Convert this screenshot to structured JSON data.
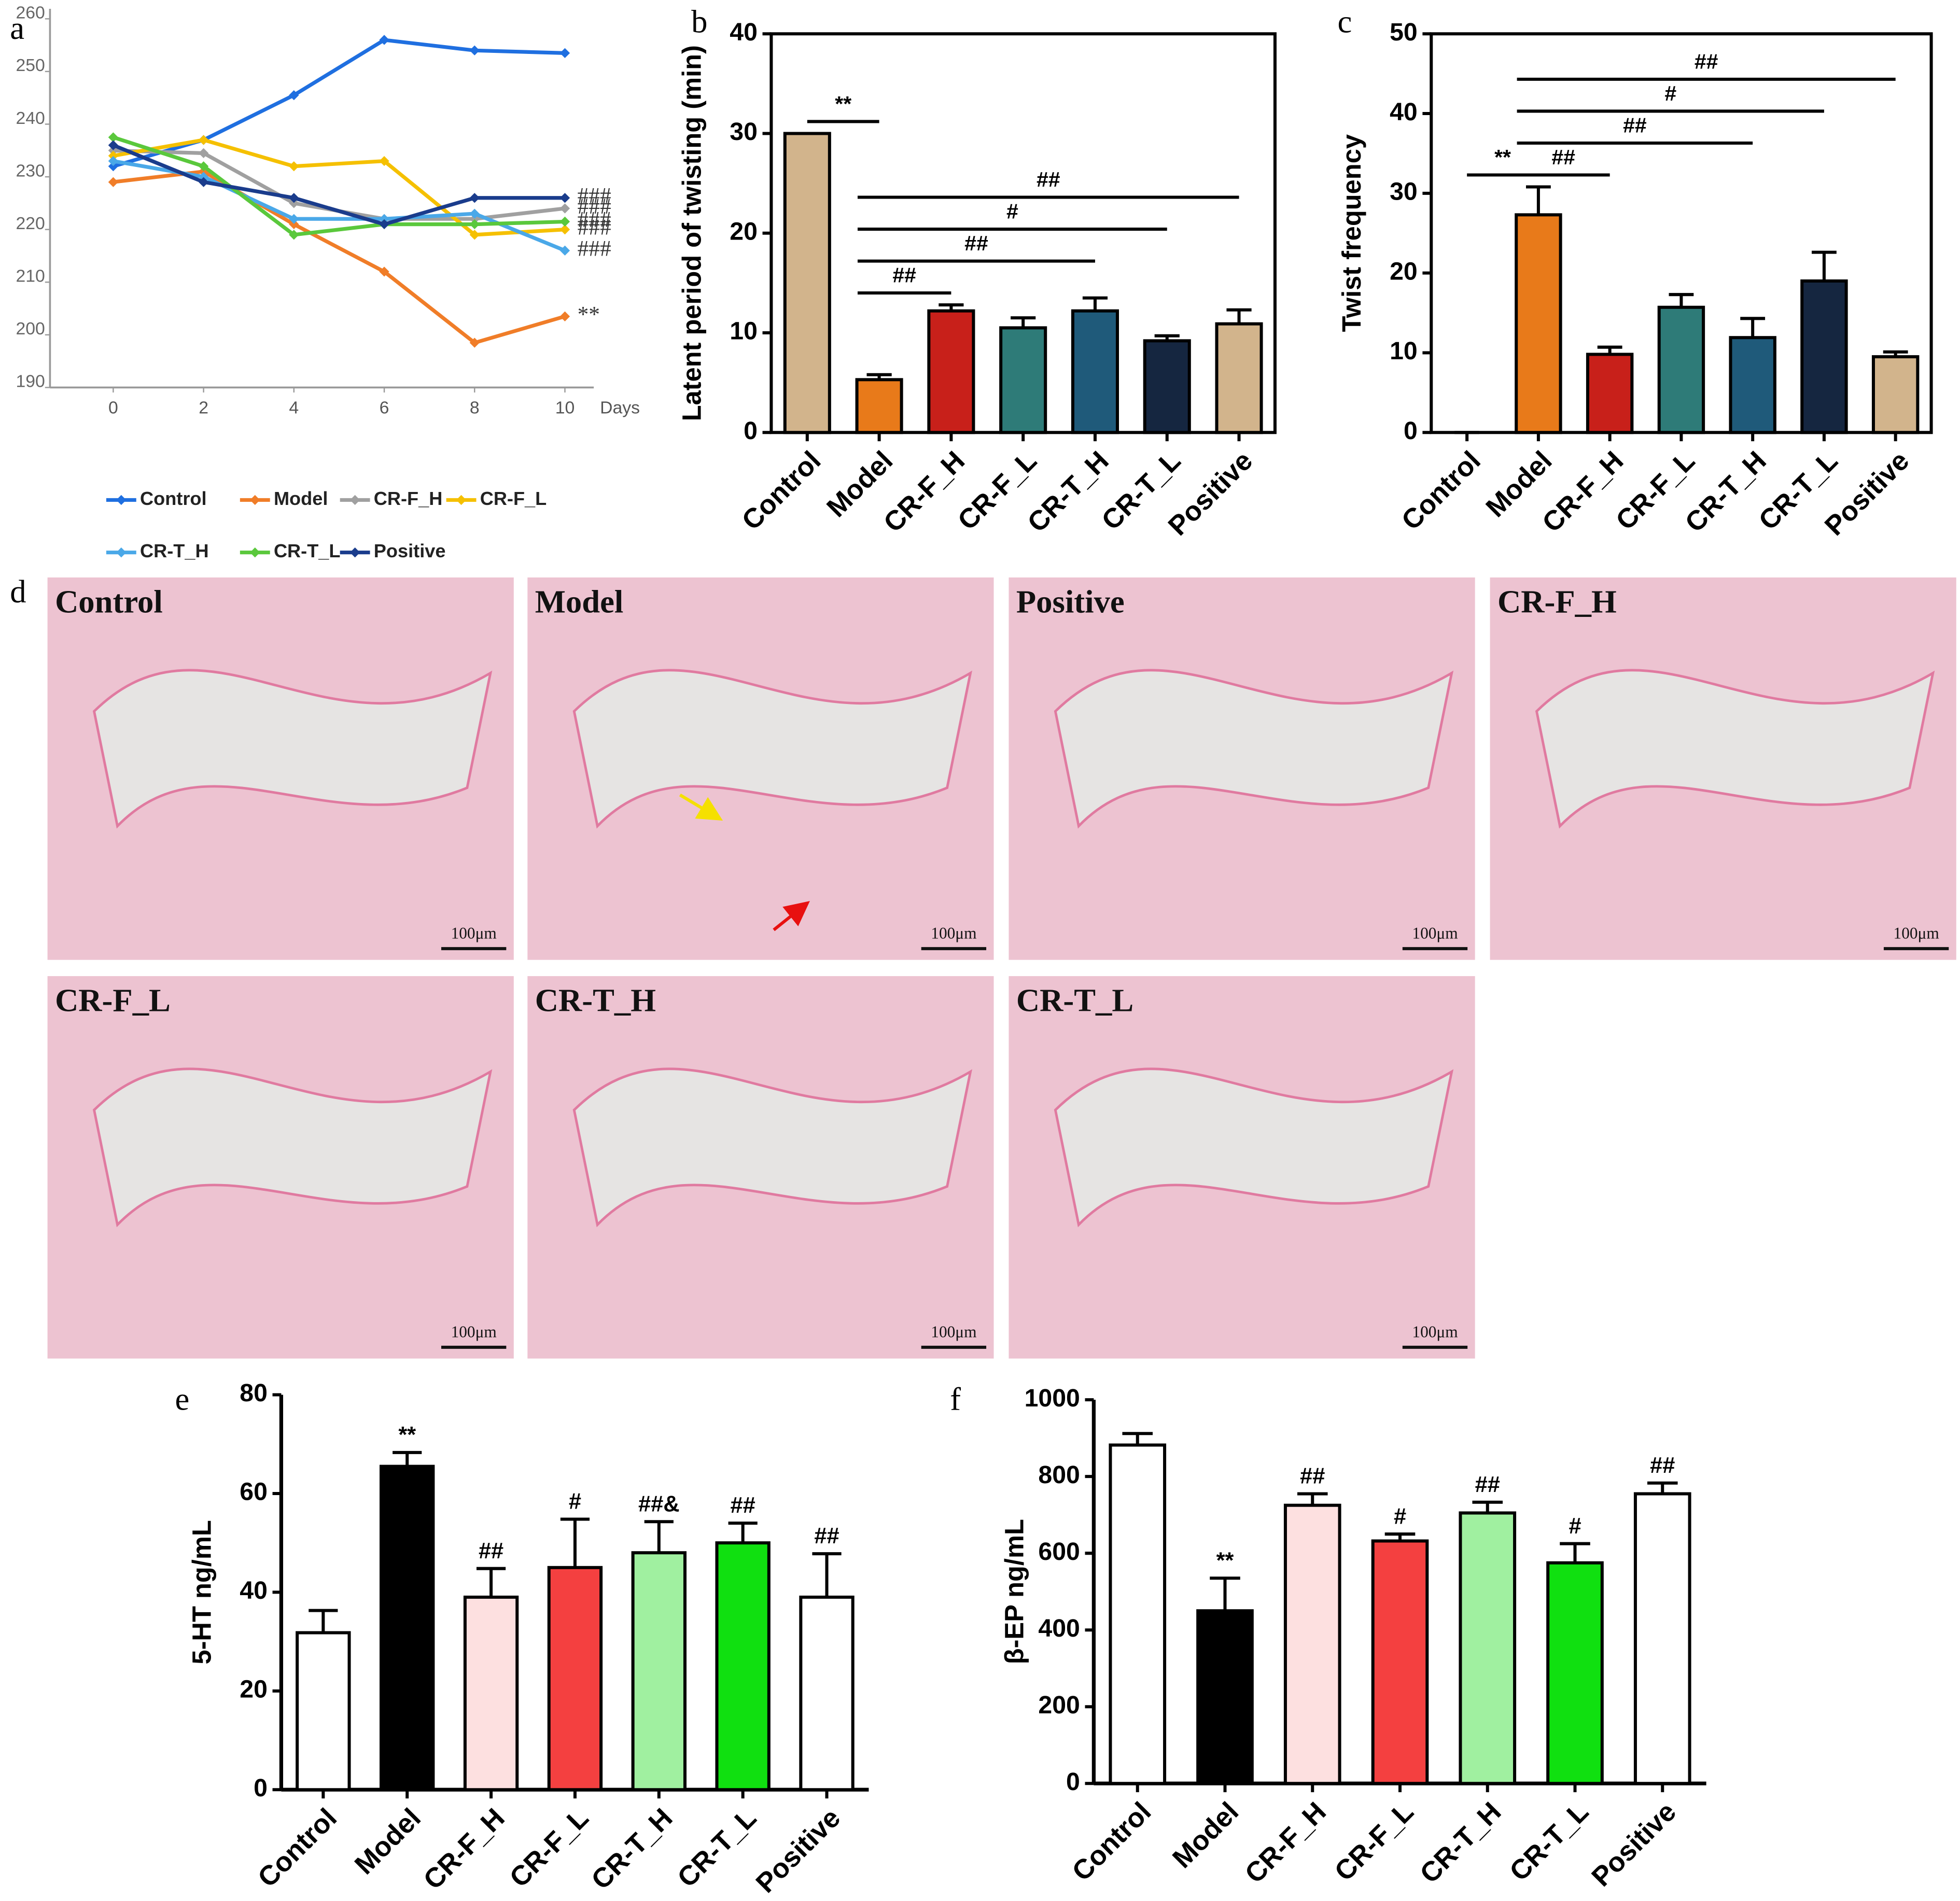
{
  "chart_data": [
    {
      "type": "line",
      "panel": "a",
      "x": [
        0,
        2,
        4,
        6,
        8,
        10
      ],
      "xlim": [
        -1.4,
        10.5
      ],
      "xticks": [
        0,
        2,
        4,
        6,
        8,
        10
      ],
      "xlabel": "Days",
      "ylim": [
        190,
        260
      ],
      "yticks": [
        190,
        200,
        210,
        220,
        230,
        240,
        250,
        260
      ],
      "series": [
        {
          "name": "Control",
          "color": "#1f6fe0",
          "values": [
            232,
            237,
            245.5,
            256,
            254,
            253.5
          ]
        },
        {
          "name": "Model",
          "color": "#f07d28",
          "values": [
            229,
            231,
            221,
            212,
            198.5,
            203.5
          ],
          "end_label": "**"
        },
        {
          "name": "CR-F_H",
          "color": "#a0a0a0",
          "values": [
            235,
            234.5,
            225,
            222,
            222,
            224
          ],
          "end_label": "###"
        },
        {
          "name": "CR-F_L",
          "color": "#f5c000",
          "values": [
            234,
            237,
            232,
            233,
            219,
            220
          ],
          "end_label": "###"
        },
        {
          "name": "CR-T_H",
          "color": "#4aa8e8",
          "values": [
            233,
            230,
            222,
            222,
            223,
            216
          ],
          "end_label": "###"
        },
        {
          "name": "CR-T_L",
          "color": "#5ac83c",
          "values": [
            237.5,
            232,
            219,
            221,
            221,
            221.5
          ],
          "end_label": "###"
        },
        {
          "name": "Positive",
          "color": "#1a3c8c",
          "values": [
            236,
            229,
            226,
            221,
            226,
            226
          ],
          "end_label": "###"
        }
      ]
    },
    {
      "type": "bar",
      "panel": "b",
      "frame": "box",
      "ylabel": "Latent period of twisting (min)",
      "ylim": [
        0,
        40
      ],
      "yticks": [
        0,
        10,
        20,
        30,
        40
      ],
      "categories": [
        "Control",
        "Model",
        "CR-F_H",
        "CR-F_L",
        "CR-T_H",
        "CR-T_L",
        "Positive"
      ],
      "values": [
        30,
        5.3,
        12.2,
        10.5,
        12.2,
        9.2,
        10.9
      ],
      "errors": [
        0,
        0.5,
        0.6,
        1.0,
        1.3,
        0.5,
        1.4
      ],
      "colors": [
        "#d2b48c",
        "#e87a1a",
        "#c8201a",
        "#2e7b78",
        "#1f5a7a",
        "#152640",
        "#d2b48c"
      ],
      "brackets": [
        {
          "between": [
            "Control",
            "Model"
          ],
          "label": "**"
        },
        {
          "between": [
            "Model",
            "CR-F_H"
          ],
          "label": "##"
        },
        {
          "between": [
            "Model",
            "CR-T_H"
          ],
          "label": "##"
        },
        {
          "between": [
            "Model",
            "CR-T_L"
          ],
          "label": "#"
        },
        {
          "between": [
            "Model",
            "Positive"
          ],
          "label": "##"
        }
      ]
    },
    {
      "type": "bar",
      "panel": "c",
      "frame": "box",
      "ylabel": "Twist frequency",
      "ylim": [
        0,
        50
      ],
      "yticks": [
        0,
        10,
        20,
        30,
        40,
        50
      ],
      "categories": [
        "Control",
        "Model",
        "CR-F_H",
        "CR-F_L",
        "CR-T_H",
        "CR-T_L",
        "Positive"
      ],
      "values": [
        0,
        27.3,
        9.8,
        15.7,
        11.9,
        19,
        9.5
      ],
      "errors": [
        0,
        3.5,
        0.9,
        1.6,
        2.4,
        3.6,
        0.6
      ],
      "colors": [
        "#d2b48c",
        "#e87a1a",
        "#c8201a",
        "#2e7b78",
        "#1f5a7a",
        "#152640",
        "#d2b48c"
      ],
      "brackets": [
        {
          "between": [
            "Control",
            "Model"
          ],
          "label": "**"
        },
        {
          "between": [
            "Model",
            "CR-F_H"
          ],
          "label": "##"
        },
        {
          "between": [
            "Model",
            "CR-T_H"
          ],
          "label": "##"
        },
        {
          "between": [
            "Model",
            "CR-T_L"
          ],
          "label": "#"
        },
        {
          "between": [
            "Model",
            "Positive"
          ],
          "label": "##"
        }
      ]
    },
    {
      "type": "image-grid",
      "panel": "d",
      "images": [
        {
          "label": "Control",
          "scale_bar": "100μm"
        },
        {
          "label": "Model",
          "scale_bar": "100μm"
        },
        {
          "label": "Positive",
          "scale_bar": "100μm"
        },
        {
          "label": "CR-F_H",
          "scale_bar": "100μm"
        },
        {
          "label": "CR-F_L",
          "scale_bar": "100μm"
        },
        {
          "label": "CR-T_H",
          "scale_bar": "100μm"
        },
        {
          "label": "CR-T_L",
          "scale_bar": "100μm"
        }
      ]
    },
    {
      "type": "bar",
      "panel": "e",
      "frame": "open",
      "ylabel": "5-HT ng/mL",
      "ylim": [
        0,
        80
      ],
      "yticks": [
        0,
        20,
        40,
        60,
        80
      ],
      "categories": [
        "Control",
        "Model",
        "CR-F_H",
        "CR-F_L",
        "CR-T_H",
        "CR-T_L",
        "Positive"
      ],
      "values": [
        31.8,
        65.5,
        39,
        45,
        48,
        50,
        39
      ],
      "errors": [
        4.5,
        2.8,
        5.8,
        9.8,
        6.3,
        4,
        8.8
      ],
      "colors": [
        "#ffffff",
        "#000000",
        "#fde0e0",
        "#f44040",
        "#a0f0a0",
        "#10e010",
        "#ffffff"
      ],
      "annotations": [
        null,
        "**",
        "##",
        "#",
        "##&",
        "##",
        "##"
      ]
    },
    {
      "type": "bar",
      "panel": "f",
      "frame": "open",
      "ylabel": "β-EP ng/mL",
      "ylim": [
        0,
        1000
      ],
      "yticks": [
        0,
        200,
        400,
        600,
        800,
        1000
      ],
      "categories": [
        "Control",
        "Model",
        "CR-F_H",
        "CR-F_L",
        "CR-T_H",
        "CR-T_L",
        "Positive"
      ],
      "values": [
        882,
        450,
        725,
        632,
        705,
        575,
        755
      ],
      "errors": [
        30,
        85,
        30,
        18,
        28,
        50,
        28
      ],
      "colors": [
        "#ffffff",
        "#000000",
        "#fde0e0",
        "#f44040",
        "#a0f0a0",
        "#10e010",
        "#ffffff"
      ],
      "annotations": [
        null,
        "**",
        "##",
        "#",
        "##",
        "#",
        "##"
      ]
    }
  ]
}
